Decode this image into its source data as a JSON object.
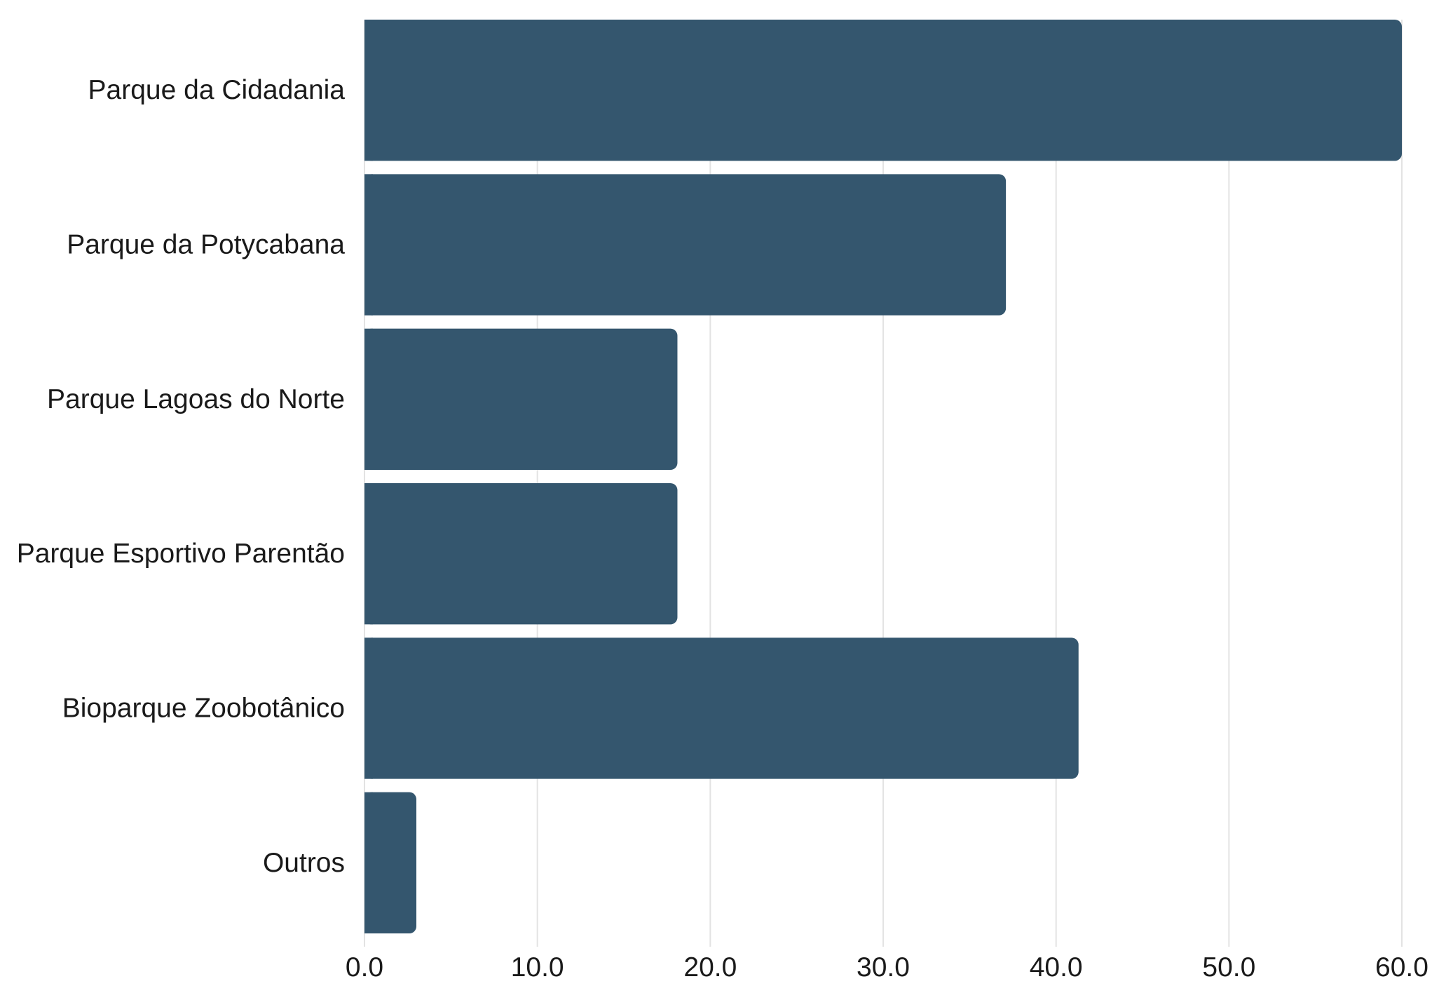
{
  "chart_data": {
    "type": "bar",
    "orientation": "horizontal",
    "categories": [
      "Parque da Cidadania",
      "Parque da Potycabana",
      "Parque Lagoas do Norte",
      "Parque Esportivo Parentão",
      "Bioparque Zoobotânico",
      "Outros"
    ],
    "values": [
      60.0,
      37.1,
      18.1,
      18.1,
      41.3,
      3.0
    ],
    "xticks": [
      "0.0",
      "10.0",
      "20.0",
      "30.0",
      "40.0",
      "50.0",
      "60.0"
    ],
    "xlim": [
      0,
      60
    ],
    "title": "",
    "xlabel": "",
    "ylabel": "",
    "grid": "vertical",
    "legend": "none",
    "bar_color": "#34566e"
  }
}
